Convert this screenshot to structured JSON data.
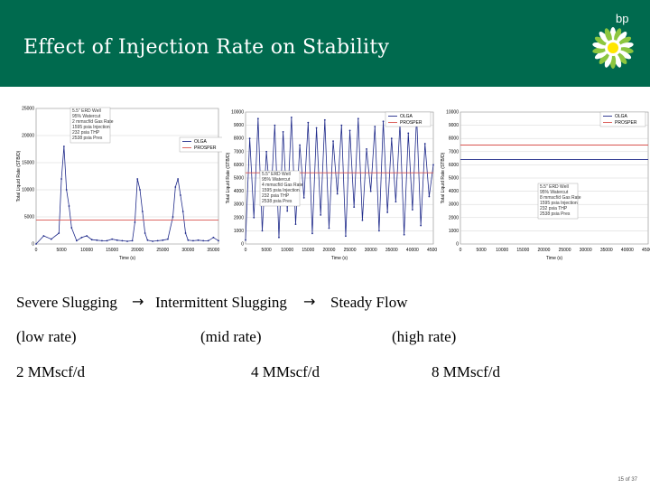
{
  "slide": {
    "title": "Effect of Injection Rate on Stability",
    "brand": "bp",
    "slide_number": "15 of 37"
  },
  "colors": {
    "header_green": "#006a4e",
    "logo_yellow": "#ffe600",
    "logo_green": "#8cc63f",
    "olga_series": "#1f2a8a",
    "prosper_series": "#d9534f"
  },
  "captions": {
    "regime1": "Severe Slugging",
    "regime2": "Intermittent Slugging",
    "regime3": "Steady Flow",
    "rate1": "(low rate)",
    "rate2": "(mid rate)",
    "rate3": "(high rate)",
    "inj1": "2 MMscf/d",
    "inj2": "4 MMscf/d",
    "inj3": "8 MMscf/d"
  },
  "chart_data": [
    {
      "type": "line",
      "xlabel": "Time (s)",
      "ylabel": "Total Liquid Rate (STB/D)",
      "x_ticks": [
        "0",
        "5000",
        "10000",
        "15000",
        "20000",
        "25000",
        "30000",
        "35000"
      ],
      "y_ticks": [
        "0",
        "5000",
        "10000",
        "15000",
        "20000",
        "25000"
      ],
      "xlim": [
        0,
        36000
      ],
      "ylim": [
        0,
        25000
      ],
      "series": [
        {
          "name": "OLGA",
          "x": [
            0,
            1500,
            3000,
            4500,
            5000,
            5500,
            6000,
            6500,
            7000,
            8000,
            9000,
            10000,
            11000,
            12000,
            13000,
            14000,
            15000,
            16000,
            17000,
            18000,
            19000,
            19500,
            20000,
            20500,
            21000,
            21500,
            22000,
            23000,
            24000,
            25000,
            26000,
            27000,
            27500,
            28000,
            28500,
            29000,
            29500,
            30000,
            31000,
            32000,
            33000,
            34000,
            35000,
            36000
          ],
          "y": [
            0,
            1500,
            900,
            2000,
            12000,
            18000,
            10000,
            7000,
            3000,
            600,
            1200,
            1500,
            800,
            700,
            600,
            600,
            900,
            700,
            600,
            500,
            600,
            4000,
            12000,
            10000,
            6000,
            2000,
            700,
            500,
            600,
            700,
            900,
            5000,
            10500,
            12000,
            9000,
            6000,
            2000,
            700,
            600,
            700,
            600,
            600,
            1200,
            600
          ]
        },
        {
          "name": "PROSPER",
          "x": [
            0,
            36000
          ],
          "y": [
            4400,
            4400
          ]
        }
      ],
      "annotations": [
        "5.5\" ERD Well",
        "95% Watercut",
        "2 mmscf/d Gas Rate",
        "1595 psia Injection",
        "232 psia THP",
        "2538 psia Pres"
      ]
    },
    {
      "type": "line",
      "xlabel": "Time (s)",
      "ylabel": "Total Liquid Rate (STB/D)",
      "x_ticks": [
        "0",
        "5000",
        "10000",
        "15000",
        "20000",
        "25000",
        "30000",
        "35000",
        "40000",
        "45000"
      ],
      "y_ticks": [
        "0",
        "1000",
        "2000",
        "3000",
        "4000",
        "5000",
        "6000",
        "7000",
        "8000",
        "9000",
        "10000"
      ],
      "xlim": [
        0,
        45000
      ],
      "ylim": [
        0,
        10000
      ],
      "series": [
        {
          "name": "OLGA",
          "x": [
            0,
            1000,
            2000,
            3000,
            4000,
            5000,
            6000,
            7000,
            8000,
            9000,
            10000,
            11000,
            12000,
            13000,
            14000,
            15000,
            16000,
            17000,
            18000,
            19000,
            20000,
            21000,
            22000,
            23000,
            24000,
            25000,
            26000,
            27000,
            28000,
            29000,
            30000,
            31000,
            32000,
            33000,
            34000,
            35000,
            36000,
            37000,
            38000,
            39000,
            40000,
            41000,
            42000,
            43000,
            44000,
            45000
          ],
          "y": [
            300,
            8000,
            2000,
            9500,
            1000,
            7000,
            3000,
            9000,
            500,
            8500,
            2500,
            9600,
            1500,
            7500,
            3500,
            9200,
            800,
            8800,
            2200,
            9400,
            1200,
            7800,
            3800,
            9000,
            600,
            8600,
            2800,
            9500,
            1800,
            7200,
            4000,
            8900,
            1000,
            9300,
            2400,
            8000,
            3200,
            9100,
            700,
            8400,
            2600,
            9700,
            1400,
            7600,
            3600,
            6000
          ]
        },
        {
          "name": "PROSPER",
          "x": [
            0,
            45000
          ],
          "y": [
            5400,
            5400
          ]
        }
      ],
      "annotations": [
        "5.5\" ERD Well",
        "95% Watercut",
        "4 mmscf/d Gas Rate",
        "1595 psia Injection",
        "232 psia THP",
        "2538 psia Pres"
      ]
    },
    {
      "type": "line",
      "xlabel": "Time (s)",
      "ylabel": "Total Liquid Rate (STB/D)",
      "x_ticks": [
        "0",
        "5000",
        "10000",
        "15000",
        "20000",
        "25000",
        "30000",
        "35000",
        "40000",
        "45000"
      ],
      "y_ticks": [
        "0",
        "1000",
        "2000",
        "3000",
        "4000",
        "5000",
        "6000",
        "7000",
        "8000",
        "9000",
        "10000"
      ],
      "xlim": [
        0,
        45000
      ],
      "ylim": [
        0,
        10000
      ],
      "series": [
        {
          "name": "OLGA",
          "x": [
            0,
            45000
          ],
          "y": [
            6400,
            6400
          ]
        },
        {
          "name": "PROSPER",
          "x": [
            0,
            45000
          ],
          "y": [
            7500,
            7500
          ]
        }
      ],
      "annotations": [
        "5.5\" ERD Well",
        "95% Watercut",
        "8 mmscf/d Gas Rate",
        "1595 psia Injection",
        "232 psia THP",
        "2538 psia Pres"
      ]
    }
  ]
}
